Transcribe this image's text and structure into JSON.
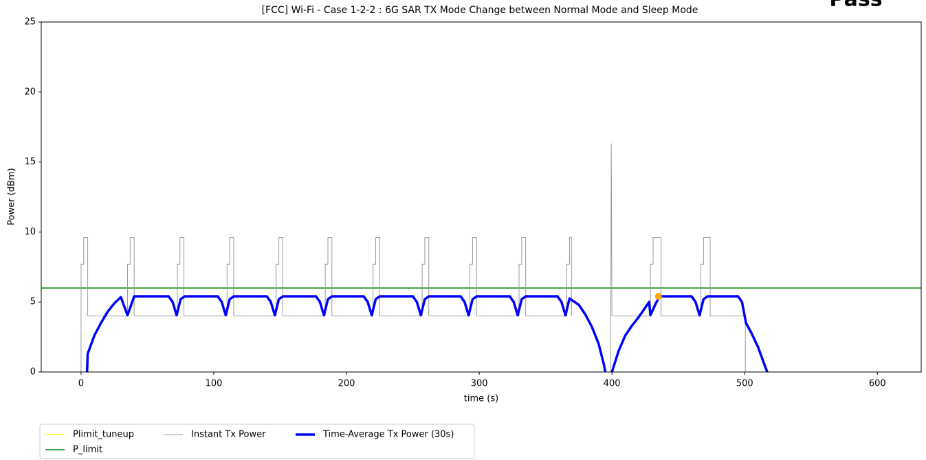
{
  "chart_data": {
    "type": "line",
    "title": "[FCC] Wi-Fi - Case 1-2-2 : 6G SAR TX Mode Change between Normal Mode and Sleep Mode",
    "annotation": {
      "text": "Pass",
      "color": "#008000"
    },
    "x_label": "time (s)",
    "y_label": "Power (dBm)",
    "xlim": [
      -30,
      633
    ],
    "ylim": [
      0,
      25
    ],
    "xticks": [
      0,
      100,
      200,
      300,
      400,
      500,
      600
    ],
    "yticks": [
      0,
      5,
      10,
      15,
      20,
      25
    ],
    "grid": false,
    "legend": "lower left",
    "series": [
      {
        "name": "Plimit_tuneup",
        "color": "#ffff00",
        "width": 1.5
      },
      {
        "name": "P_limit",
        "color": "#008000",
        "width": 1.5,
        "x": [
          -30,
          633
        ],
        "values": [
          6,
          6
        ]
      },
      {
        "name": "Instant Tx Power",
        "color": "#999999",
        "width": 1,
        "x": [
          0,
          0,
          2,
          2,
          5,
          5,
          35,
          35,
          37,
          37,
          40,
          40,
          72.5,
          72.5,
          74.5,
          74.5,
          77.5,
          77.5,
          110,
          110,
          112,
          112,
          115,
          115,
          147,
          147,
          149,
          149,
          152,
          152,
          184,
          184,
          186,
          186,
          189,
          189,
          220,
          220,
          222,
          222,
          225,
          225,
          257,
          257,
          259,
          259,
          262,
          262,
          293,
          293,
          295,
          295,
          298,
          298,
          330,
          330,
          332,
          332,
          335,
          335,
          366,
          366,
          368,
          368,
          369.5,
          369.5,
          384,
          399,
          399.5,
          400,
          429,
          429,
          431,
          431,
          437,
          437,
          467,
          467,
          469,
          469,
          474,
          474,
          500.5,
          500.5
        ],
        "values": [
          0,
          7.7,
          7.7,
          9.6,
          9.6,
          4,
          4,
          7.7,
          7.7,
          9.6,
          9.6,
          4,
          4,
          7.7,
          7.7,
          9.6,
          9.6,
          4,
          4,
          7.7,
          7.7,
          9.6,
          9.6,
          4,
          4,
          7.7,
          7.7,
          9.6,
          9.6,
          4,
          4,
          7.7,
          7.7,
          9.6,
          9.6,
          4,
          4,
          7.7,
          7.7,
          9.6,
          9.6,
          4,
          4,
          7.7,
          7.7,
          9.6,
          9.6,
          4,
          4,
          7.7,
          7.7,
          9.6,
          9.6,
          4,
          4,
          7.7,
          7.7,
          9.6,
          9.6,
          4,
          4,
          7.7,
          7.7,
          9.6,
          9.6,
          4,
          null,
          0,
          16.3,
          4,
          4,
          7.7,
          7.7,
          9.6,
          9.6,
          4,
          4,
          7.7,
          7.7,
          9.6,
          9.6,
          4,
          4,
          0
        ]
      },
      {
        "name": "Time-Average Tx Power (30s)",
        "color": "#0000ff",
        "width": 3.5,
        "x": [
          4.5,
          5,
          10,
          15,
          20,
          25,
          30,
          35,
          40,
          66,
          69,
          72,
          75,
          78,
          103,
          106,
          109,
          112,
          115,
          140,
          143,
          146,
          149,
          152,
          177,
          180,
          183,
          186,
          189,
          213,
          216,
          219,
          222,
          225,
          250,
          253,
          256,
          259,
          262,
          286,
          289,
          292,
          295,
          298,
          323,
          326,
          329,
          332,
          335,
          359,
          362,
          365,
          368,
          375,
          380,
          385,
          390,
          394,
          395,
          397,
          400,
          405,
          410,
          415,
          420,
          428,
          429,
          433,
          436,
          460,
          463,
          466,
          469,
          472,
          495,
          498,
          501,
          505,
          510,
          515,
          517
        ],
        "values": [
          0,
          1.3,
          2.6,
          3.5,
          4.3,
          4.9,
          5.35,
          4.05,
          5.4,
          5.4,
          5.0,
          4.05,
          5.2,
          5.4,
          5.4,
          5.0,
          4.05,
          5.2,
          5.4,
          5.4,
          5.0,
          4.05,
          5.2,
          5.4,
          5.4,
          5.0,
          4.05,
          5.2,
          5.4,
          5.4,
          5.0,
          4.05,
          5.2,
          5.4,
          5.4,
          5.0,
          4.05,
          5.2,
          5.4,
          5.4,
          5.0,
          4.05,
          5.2,
          5.4,
          5.4,
          5.0,
          4.05,
          5.2,
          5.4,
          5.4,
          5.0,
          4.05,
          5.25,
          4.8,
          4.1,
          3.2,
          2.0,
          0.5,
          0,
          null,
          0,
          1.5,
          2.6,
          3.3,
          3.9,
          5.0,
          4.05,
          4.9,
          5.4,
          5.4,
          5.0,
          4.05,
          5.2,
          5.4,
          5.4,
          5.0,
          3.5,
          2.8,
          1.8,
          0.5,
          0
        ]
      }
    ],
    "points": [
      {
        "x": 435,
        "y": 5.4,
        "color": "#ffa500"
      }
    ]
  }
}
